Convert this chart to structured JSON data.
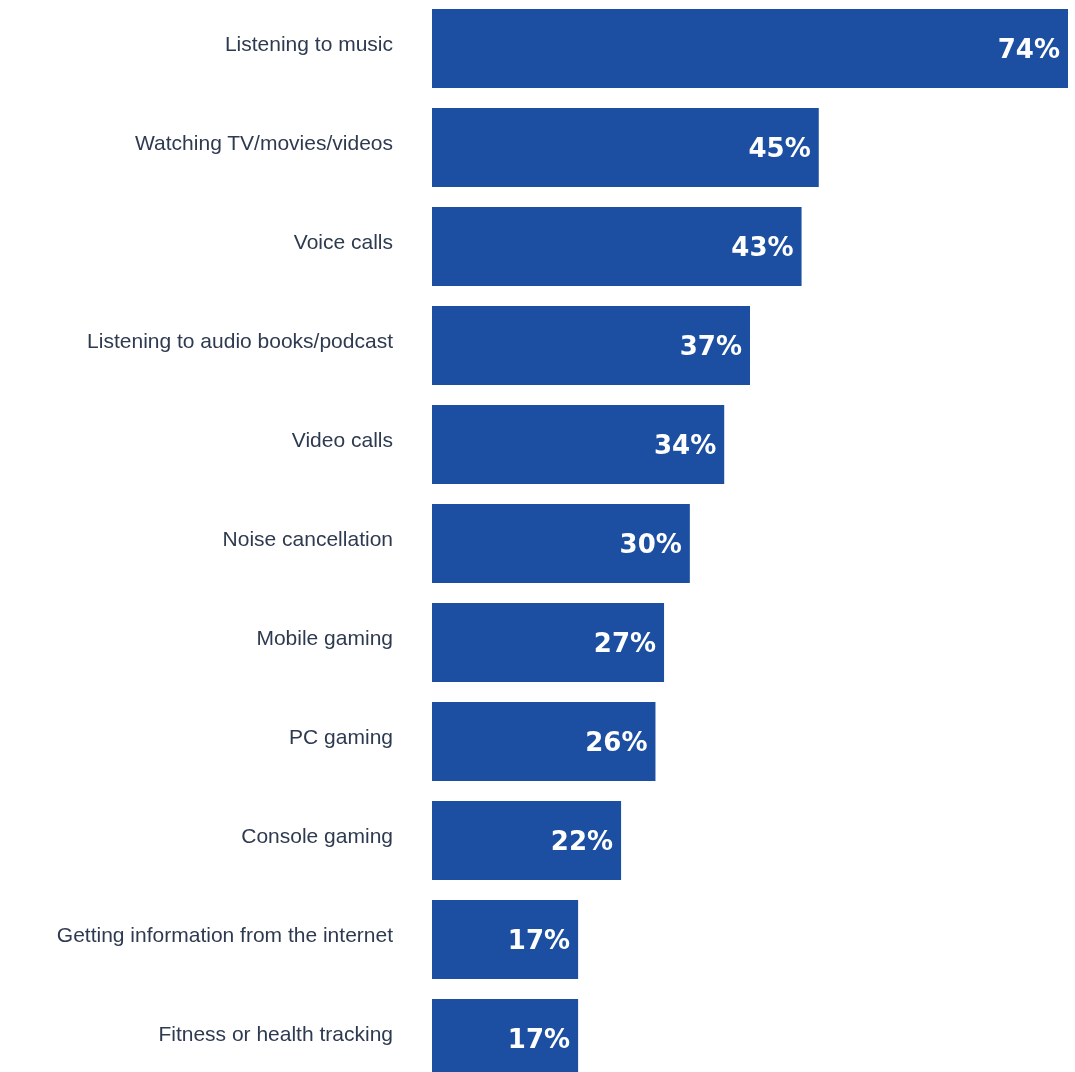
{
  "chart_data": {
    "type": "bar",
    "orientation": "horizontal",
    "categories": [
      "Listening to music",
      "Watching TV/movies/videos",
      "Voice calls",
      "Listening to audio books/podcast",
      "Video calls",
      "Noise cancellation",
      "Mobile gaming",
      "PC gaming",
      "Console gaming",
      "Getting information from the internet",
      "Fitness or health tracking"
    ],
    "values": [
      74,
      45,
      43,
      37,
      34,
      30,
      27,
      26,
      22,
      17,
      17
    ],
    "value_labels": [
      "74%",
      "45%",
      "43%",
      "37%",
      "34%",
      "30%",
      "27%",
      "26%",
      "22%",
      "17%",
      "17%"
    ],
    "color": "#1c4fa1"
  }
}
